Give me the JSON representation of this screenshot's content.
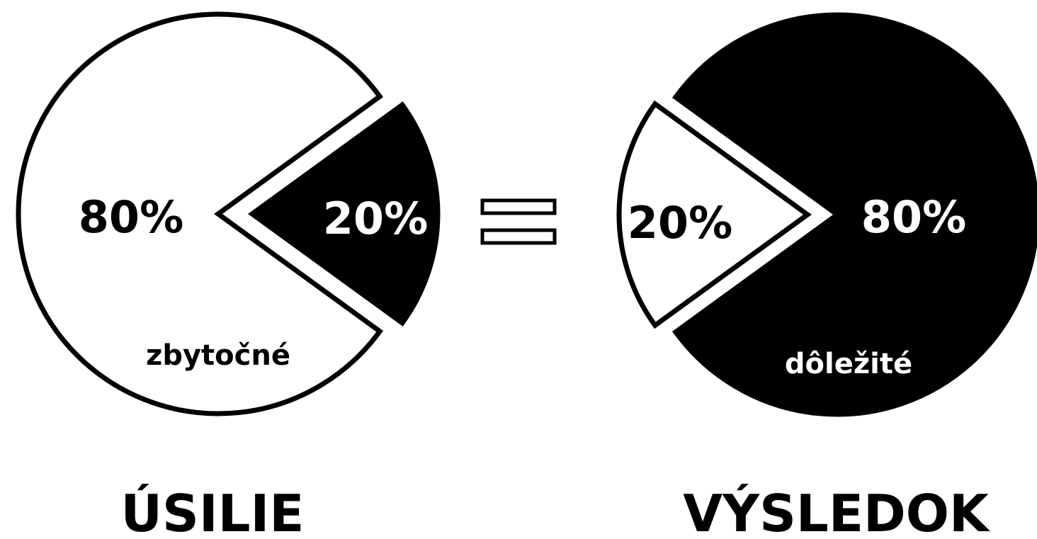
{
  "chart_data": [
    {
      "type": "pie",
      "title": "ÚSILIE",
      "slices": [
        {
          "value": 80,
          "label": "80%",
          "fill": "#ffffff",
          "exploded": false
        },
        {
          "value": 20,
          "label": "20%",
          "fill": "#000000",
          "exploded": true
        }
      ],
      "annotation": "zbytočné"
    },
    {
      "type": "pie",
      "title": "VÝSLEDOK",
      "slices": [
        {
          "value": 20,
          "label": "20%",
          "fill": "#ffffff",
          "exploded": true
        },
        {
          "value": 80,
          "label": "80%",
          "fill": "#000000",
          "exploded": false
        }
      ],
      "annotation": "dôležité"
    }
  ],
  "equals_sign": "=",
  "colors": {
    "background": "#ffffff",
    "ink": "#000000"
  }
}
